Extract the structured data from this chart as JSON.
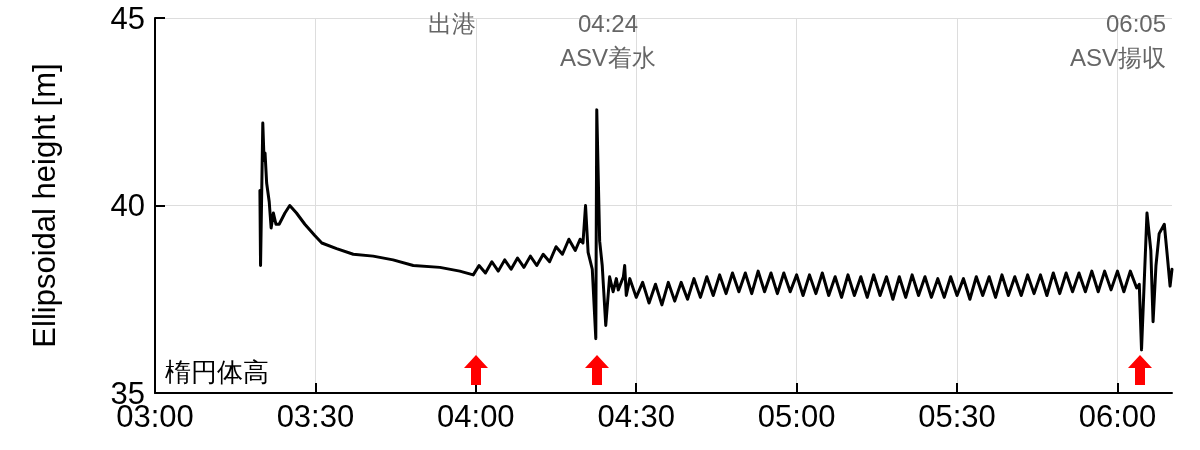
{
  "chart_data": {
    "type": "line",
    "ylabel": "Ellipsoidal height [m]",
    "xlim": [
      3,
      6.17
    ],
    "ylim": [
      35,
      45
    ],
    "xticks": [
      {
        "value": 3,
        "label": "03:00"
      },
      {
        "value": 3.5,
        "label": "03:30"
      },
      {
        "value": 4,
        "label": "04:00"
      },
      {
        "value": 4.5,
        "label": "04:30"
      },
      {
        "value": 5,
        "label": "05:00"
      },
      {
        "value": 5.5,
        "label": "05:30"
      },
      {
        "value": 6,
        "label": "06:00"
      }
    ],
    "yticks": [
      35,
      40,
      45
    ],
    "grid": true,
    "legend": false,
    "marker": "none",
    "line_style": "solid",
    "annotations": [
      "出港",
      "04:24\nASV着水",
      "06:05\nASV揚収"
    ],
    "series": [
      {
        "name": "楕円体高",
        "color": "#000000",
        "x": [
          3.327,
          3.329,
          3.336,
          3.34,
          3.343,
          3.348,
          3.356,
          3.362,
          3.369,
          3.377,
          3.387,
          3.405,
          3.42,
          3.441,
          3.467,
          3.498,
          3.52,
          3.566,
          3.618,
          3.68,
          3.742,
          3.805,
          3.888,
          3.95,
          3.992,
          4.01,
          4.03,
          4.05,
          4.07,
          4.09,
          4.11,
          4.13,
          4.15,
          4.17,
          4.19,
          4.21,
          4.23,
          4.25,
          4.27,
          4.29,
          4.31,
          4.325,
          4.334,
          4.342,
          4.35,
          4.363,
          4.374,
          4.377,
          4.386,
          4.394,
          4.405,
          4.417,
          4.428,
          4.438,
          4.444,
          4.46,
          4.464,
          4.469,
          4.48,
          4.5,
          4.52,
          4.54,
          4.56,
          4.58,
          4.6,
          4.62,
          4.64,
          4.66,
          4.68,
          4.7,
          4.72,
          4.74,
          4.76,
          4.78,
          4.8,
          4.82,
          4.84,
          4.86,
          4.88,
          4.9,
          4.92,
          4.94,
          4.96,
          4.98,
          5.0,
          5.02,
          5.04,
          5.06,
          5.08,
          5.1,
          5.12,
          5.14,
          5.16,
          5.18,
          5.2,
          5.22,
          5.24,
          5.26,
          5.28,
          5.3,
          5.32,
          5.34,
          5.36,
          5.38,
          5.4,
          5.42,
          5.44,
          5.46,
          5.48,
          5.5,
          5.52,
          5.54,
          5.56,
          5.58,
          5.6,
          5.62,
          5.64,
          5.66,
          5.68,
          5.7,
          5.72,
          5.74,
          5.76,
          5.78,
          5.8,
          5.82,
          5.84,
          5.86,
          5.88,
          5.9,
          5.92,
          5.94,
          5.96,
          5.98,
          6.0,
          6.02,
          6.04,
          6.06,
          6.068,
          6.075,
          6.085,
          6.092,
          6.104,
          6.111,
          6.12,
          6.13,
          6.146,
          6.156,
          6.164,
          6.17
        ],
        "values": [
          40.4,
          38.4,
          42.2,
          41.2,
          41.4,
          40.6,
          40.1,
          39.4,
          39.8,
          39.5,
          39.5,
          39.8,
          40.0,
          39.8,
          39.5,
          39.2,
          39.0,
          38.85,
          38.7,
          38.65,
          38.55,
          38.4,
          38.35,
          38.25,
          38.15,
          38.4,
          38.2,
          38.5,
          38.25,
          38.55,
          38.3,
          38.6,
          38.35,
          38.65,
          38.4,
          38.7,
          38.5,
          38.9,
          38.7,
          39.1,
          38.8,
          39.1,
          39.0,
          40.0,
          38.75,
          38.3,
          36.45,
          42.55,
          39.05,
          38.4,
          36.8,
          38.1,
          37.7,
          38.05,
          37.75,
          38.1,
          38.4,
          37.6,
          38.05,
          37.55,
          37.95,
          37.4,
          37.9,
          37.35,
          37.95,
          37.45,
          37.95,
          37.5,
          38.05,
          37.55,
          38.1,
          37.6,
          38.15,
          37.65,
          38.2,
          37.7,
          38.2,
          37.65,
          38.25,
          37.7,
          38.2,
          37.65,
          38.2,
          37.7,
          38.15,
          37.6,
          38.15,
          37.65,
          38.2,
          37.6,
          38.1,
          37.55,
          38.15,
          37.6,
          38.1,
          37.55,
          38.15,
          37.6,
          38.1,
          37.5,
          38.1,
          37.55,
          38.15,
          37.6,
          38.1,
          37.55,
          38.05,
          37.55,
          38.1,
          37.6,
          38.05,
          37.5,
          38.1,
          37.6,
          38.1,
          37.55,
          38.15,
          37.6,
          38.1,
          37.6,
          38.15,
          37.65,
          38.15,
          37.6,
          38.2,
          37.65,
          38.2,
          37.7,
          38.2,
          37.7,
          38.25,
          37.7,
          38.25,
          37.75,
          38.25,
          37.7,
          38.25,
          37.8,
          37.9,
          36.15,
          38.3,
          39.8,
          38.8,
          36.9,
          38.4,
          39.25,
          39.5,
          38.6,
          37.85,
          38.3
        ]
      }
    ]
  }
}
